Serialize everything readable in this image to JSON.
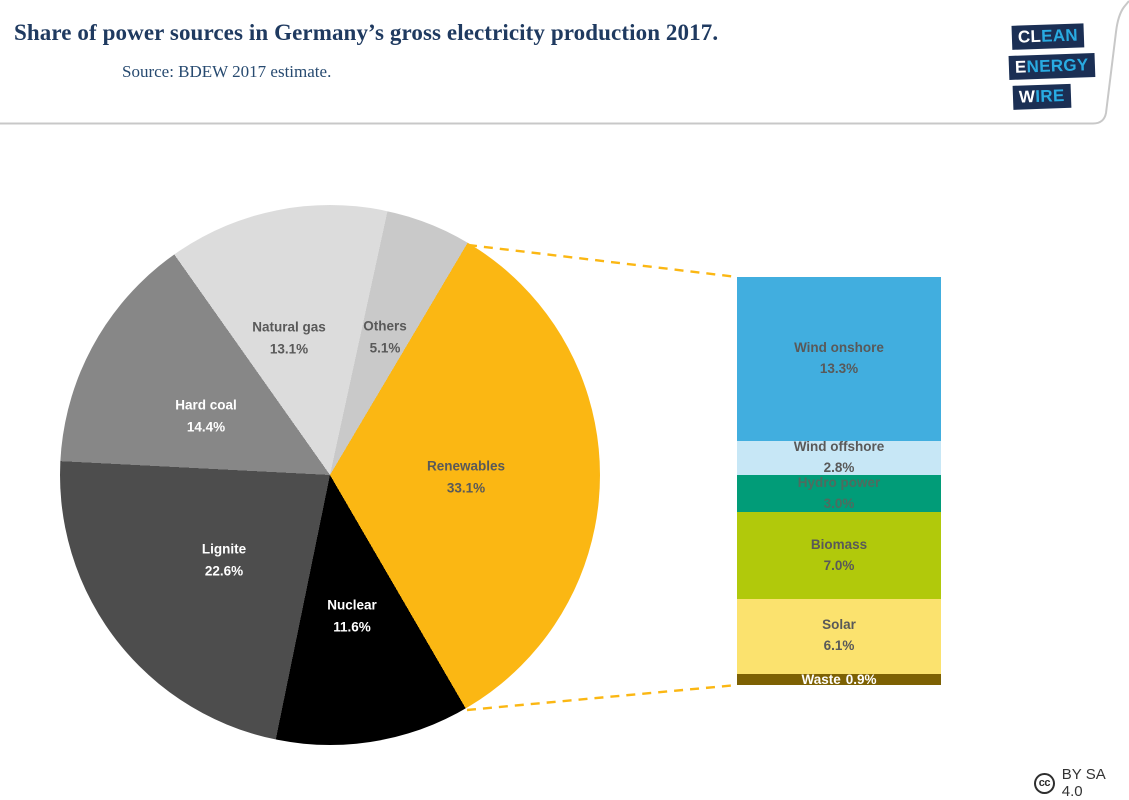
{
  "header": {
    "title": "Share of power sources in Germany’s gross electricity production 2017.",
    "source": "Source: BDEW 2017 estimate."
  },
  "logo": {
    "name": "Clean Energy Wire",
    "block_color": "#1B2F54",
    "highlight_color": "#FFFFFF",
    "rest_color": "#29ABE2",
    "lines": [
      {
        "highlight": "CL",
        "rest": "EAN"
      },
      {
        "highlight": "E",
        "rest": "NERGY"
      },
      {
        "highlight": "W",
        "rest": "IRE"
      }
    ]
  },
  "footer": {
    "cc_icon": "cc",
    "license": "BY SA 4.0"
  },
  "chart_data": {
    "type": "pie",
    "title": "Share of power sources in Germany’s gross electricity production 2017.",
    "source": "Source: BDEW 2017 estimate.",
    "units": "%",
    "connector_color": "#FBB713",
    "pie": {
      "start_angle_deg": 12.3,
      "slices": [
        {
          "label": "Others",
          "value": 5.1,
          "pct": "5.1%",
          "color": "#C9C9C9",
          "text_color": "#595959"
        },
        {
          "label": "Renewables",
          "value": 33.1,
          "pct": "33.1%",
          "color": "#FBB713",
          "text_color": "#595959"
        },
        {
          "label": "Nuclear",
          "value": 11.6,
          "pct": "11.6%",
          "color": "#000000",
          "text_color": "#FFFFFF"
        },
        {
          "label": "Lignite",
          "value": 22.6,
          "pct": "22.6%",
          "color": "#4D4D4D",
          "text_color": "#FFFFFF"
        },
        {
          "label": "Hard coal",
          "value": 14.4,
          "pct": "14.4%",
          "color": "#878787",
          "text_color": "#FFFFFF"
        },
        {
          "label": "Natural gas",
          "value": 13.1,
          "pct": "13.1%",
          "color": "#DCDCDC",
          "text_color": "#595959"
        }
      ]
    },
    "renewables_breakdown": {
      "total_label": "Renewables",
      "total_value": 33.1,
      "segments": [
        {
          "label": "Wind onshore",
          "value": 13.3,
          "pct": "13.3%",
          "color": "#41AEDF",
          "text_color": "#595959"
        },
        {
          "label": "Wind offshore",
          "value": 2.8,
          "pct": "2.8%",
          "color": "#C7E7F6",
          "text_color": "#595959"
        },
        {
          "label": "Hydro power",
          "value": 3.0,
          "pct": "3.0%",
          "color": "#019C78",
          "text_color": "#4F6B5F"
        },
        {
          "label": "Biomass",
          "value": 7.0,
          "pct": "7.0%",
          "color": "#B1C90B",
          "text_color": "#595959"
        },
        {
          "label": "Solar",
          "value": 6.1,
          "pct": "6.1%",
          "color": "#FBE26E",
          "text_color": "#595959"
        },
        {
          "label": "Waste",
          "value": 0.9,
          "pct": "0.9%",
          "color": "#7D6103",
          "text_color": "#FFFFFF",
          "single_line": true
        }
      ]
    }
  }
}
